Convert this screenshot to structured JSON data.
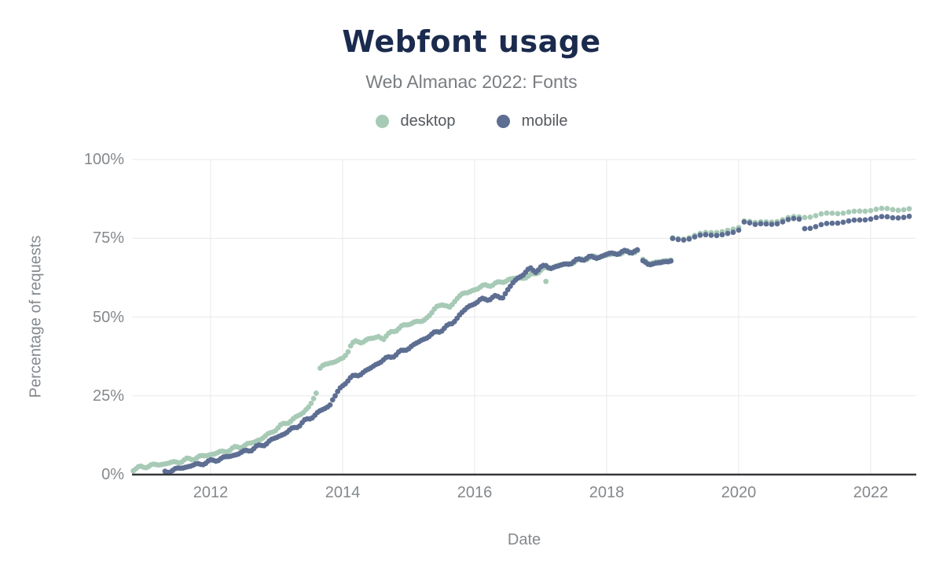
{
  "header": {
    "title": "Webfont usage",
    "subtitle": "Web Almanac 2022: Fonts"
  },
  "legend": {
    "items": [
      {
        "label": "desktop",
        "color": "#a7cab6"
      },
      {
        "label": "mobile",
        "color": "#5d6e92"
      }
    ]
  },
  "axes": {
    "y_label": "Percentage of requests",
    "x_label": "Date",
    "y_ticks": [
      "100%",
      "75%",
      "50%",
      "25%",
      "0%"
    ],
    "x_ticks": [
      "2012",
      "2014",
      "2016",
      "2018",
      "2020",
      "2022"
    ]
  },
  "chart_data": {
    "type": "scatter",
    "title": "Webfont usage",
    "subtitle": "Web Almanac 2022: Fonts",
    "xlabel": "Date",
    "ylabel": "Percentage of requests",
    "xlim": [
      2010.8,
      2022.7
    ],
    "ylim": [
      0,
      100
    ],
    "x_ticks": [
      2012,
      2014,
      2016,
      2018,
      2020,
      2022
    ],
    "y_ticks": [
      0,
      25,
      50,
      75,
      100
    ],
    "grid": true,
    "legend_position": "top",
    "sampling_note": "values in percent of requests; points plotted ~biweekly before 2019 and ~monthly after, interpolated between the anchor readings below",
    "series": [
      {
        "name": "desktop",
        "color": "#a7cab6",
        "segments": [
          [
            [
              2010.83,
              1.6
            ],
            [
              2011,
              2.6
            ],
            [
              2011.25,
              3.3
            ],
            [
              2011.5,
              4
            ],
            [
              2011.75,
              5.2
            ],
            [
              2012,
              6.4
            ],
            [
              2012.2,
              7.3
            ],
            [
              2012.4,
              8.6
            ],
            [
              2012.6,
              9.8
            ],
            [
              2012.75,
              11.2
            ],
            [
              2012.9,
              13
            ],
            [
              2013,
              14.7
            ],
            [
              2013.1,
              15.8
            ],
            [
              2013.2,
              17
            ],
            [
              2013.3,
              18.2
            ],
            [
              2013.4,
              19.6
            ],
            [
              2013.5,
              22
            ],
            [
              2013.58,
              24.5
            ],
            [
              2013.63,
              27
            ]
          ],
          [
            [
              2013.66,
              33.5
            ],
            [
              2013.72,
              34.9
            ],
            [
              2013.8,
              35.4
            ],
            [
              2013.9,
              36
            ],
            [
              2014,
              36.6
            ],
            [
              2014.06,
              38.5
            ],
            [
              2014.12,
              41
            ],
            [
              2014.18,
              41.9
            ],
            [
              2014.3,
              42.3
            ],
            [
              2014.45,
              43.2
            ],
            [
              2014.55,
              43.9
            ],
            [
              2014.62,
              43
            ],
            [
              2014.75,
              45.5
            ],
            [
              2014.9,
              46.8
            ],
            [
              2015,
              48
            ],
            [
              2015.12,
              48.4
            ],
            [
              2015.22,
              48.7
            ],
            [
              2015.4,
              52.5
            ],
            [
              2015.52,
              54.5
            ],
            [
              2015.63,
              52.5
            ],
            [
              2015.72,
              56
            ],
            [
              2015.8,
              57.2
            ],
            [
              2015.9,
              57.7
            ],
            [
              2016,
              58.8
            ],
            [
              2016.1,
              59.6
            ],
            [
              2016.22,
              60.2
            ],
            [
              2016.35,
              60.7
            ],
            [
              2016.5,
              61.8
            ],
            [
              2016.6,
              62.2
            ],
            [
              2016.7,
              62.4
            ],
            [
              2016.8,
              62.8
            ],
            [
              2016.9,
              63.6
            ],
            [
              2017,
              65
            ],
            [
              2017.1,
              65.4
            ],
            [
              2017.2,
              66
            ],
            [
              2017.35,
              66.6
            ],
            [
              2017.5,
              67.4
            ],
            [
              2017.65,
              68.5
            ],
            [
              2017.8,
              69
            ],
            [
              2017.9,
              69.2
            ],
            [
              2018,
              69.6
            ],
            [
              2018.15,
              70.1
            ],
            [
              2018.3,
              70.6
            ],
            [
              2018.42,
              70.8
            ],
            [
              2018.5,
              71
            ]
          ],
          [
            [
              2018.55,
              67.8
            ],
            [
              2018.62,
              67.3
            ],
            [
              2018.72,
              67.2
            ],
            [
              2018.82,
              67.5
            ],
            [
              2018.92,
              68
            ],
            [
              2018.98,
              68.4
            ]
          ],
          [
            [
              2019,
              74.8
            ],
            [
              2019.2,
              75.3
            ],
            [
              2019.35,
              75.9
            ],
            [
              2019.5,
              76.5
            ],
            [
              2019.65,
              77
            ],
            [
              2019.8,
              77.4
            ],
            [
              2019.92,
              77.8
            ],
            [
              2020,
              78.4
            ],
            [
              2020.06,
              80.4
            ],
            [
              2020.12,
              80.9
            ],
            [
              2020.22,
              79.7
            ],
            [
              2020.35,
              80
            ],
            [
              2020.5,
              80.5
            ],
            [
              2020.65,
              80.9
            ],
            [
              2020.8,
              81.3
            ],
            [
              2020.95,
              81.8
            ],
            [
              2021.1,
              82.2
            ],
            [
              2021.25,
              82.5
            ],
            [
              2021.4,
              82.8
            ],
            [
              2021.55,
              83
            ],
            [
              2021.7,
              83.4
            ],
            [
              2021.85,
              83.7
            ],
            [
              2022,
              83.9
            ],
            [
              2022.15,
              84.1
            ],
            [
              2022.3,
              84.3
            ],
            [
              2022.45,
              84.4
            ],
            [
              2022.58,
              84.2
            ],
            [
              2022.66,
              83.5
            ]
          ]
        ],
        "outliers": [
          [
            2017.08,
            61.3
          ]
        ]
      },
      {
        "name": "mobile",
        "color": "#5d6e92",
        "segments": [
          [
            [
              2011.31,
              0.8
            ],
            [
              2011.5,
              1.8
            ],
            [
              2011.7,
              2.8
            ],
            [
              2011.85,
              3.4
            ],
            [
              2012,
              4.2
            ],
            [
              2012.2,
              5.3
            ],
            [
              2012.4,
              6.5
            ],
            [
              2012.6,
              7.9
            ],
            [
              2012.8,
              9.5
            ],
            [
              2013,
              11.8
            ],
            [
              2013.15,
              13.4
            ],
            [
              2013.3,
              15.2
            ],
            [
              2013.4,
              16.6
            ],
            [
              2013.5,
              17.8
            ],
            [
              2013.6,
              19.3
            ],
            [
              2013.7,
              20.6
            ],
            [
              2013.8,
              21.8
            ],
            [
              2013.85,
              24
            ],
            [
              2013.93,
              26.2
            ],
            [
              2014,
              28.2
            ],
            [
              2014.06,
              29.8
            ],
            [
              2014.12,
              30.6
            ],
            [
              2014.25,
              31.8
            ],
            [
              2014.4,
              33.4
            ],
            [
              2014.5,
              34.9
            ],
            [
              2014.6,
              36.2
            ],
            [
              2014.73,
              37.4
            ],
            [
              2014.85,
              38.6
            ],
            [
              2015,
              40.2
            ],
            [
              2015.15,
              42
            ],
            [
              2015.3,
              43.9
            ],
            [
              2015.45,
              45.4
            ],
            [
              2015.55,
              46.6
            ],
            [
              2015.65,
              47.8
            ],
            [
              2015.75,
              50.2
            ],
            [
              2015.88,
              52.8
            ],
            [
              2016,
              54.5
            ],
            [
              2016.1,
              55.4
            ],
            [
              2016.2,
              55.8
            ],
            [
              2016.32,
              56.4
            ],
            [
              2016.42,
              56.2
            ],
            [
              2016.48,
              58
            ],
            [
              2016.58,
              60.8
            ],
            [
              2016.68,
              62.8
            ],
            [
              2016.78,
              64.4
            ],
            [
              2016.85,
              65.2
            ],
            [
              2016.92,
              64.6
            ],
            [
              2017,
              65.7
            ],
            [
              2017.08,
              66.2
            ],
            [
              2017.15,
              65.6
            ],
            [
              2017.25,
              66.1
            ],
            [
              2017.35,
              66.6
            ],
            [
              2017.5,
              67.5
            ],
            [
              2017.62,
              68.4
            ],
            [
              2017.75,
              69
            ],
            [
              2017.85,
              68.8
            ],
            [
              2018,
              69.9
            ],
            [
              2018.15,
              70.3
            ],
            [
              2018.3,
              70.7
            ],
            [
              2018.42,
              70.9
            ],
            [
              2018.5,
              71.1
            ]
          ],
          [
            [
              2018.55,
              67.4
            ],
            [
              2018.62,
              67
            ],
            [
              2018.72,
              66.9
            ],
            [
              2018.82,
              67.2
            ],
            [
              2018.92,
              67.7
            ],
            [
              2018.98,
              68.1
            ]
          ],
          [
            [
              2019,
              74.6
            ],
            [
              2019.2,
              75
            ],
            [
              2019.35,
              75.4
            ],
            [
              2019.5,
              75.8
            ],
            [
              2019.65,
              76.1
            ],
            [
              2019.8,
              76.4
            ],
            [
              2019.92,
              76.8
            ],
            [
              2020,
              77.6
            ],
            [
              2020.06,
              80.1
            ],
            [
              2020.12,
              80.6
            ],
            [
              2020.22,
              79.1
            ],
            [
              2020.35,
              79.4
            ],
            [
              2020.5,
              79.8
            ],
            [
              2020.65,
              80.2
            ],
            [
              2020.8,
              80.7
            ],
            [
              2020.92,
              81
            ],
            [
              2021,
              78.4
            ],
            [
              2021.12,
              78.7
            ],
            [
              2021.25,
              79.1
            ],
            [
              2021.4,
              79.6
            ],
            [
              2021.55,
              80.1
            ],
            [
              2021.7,
              80.6
            ],
            [
              2021.85,
              80.9
            ],
            [
              2022,
              81.2
            ],
            [
              2022.15,
              81.5
            ],
            [
              2022.3,
              81.7
            ],
            [
              2022.45,
              82
            ],
            [
              2022.58,
              81.8
            ],
            [
              2022.66,
              81.2
            ]
          ]
        ],
        "outliers": []
      }
    ]
  },
  "style": {
    "title_color": "#1b2b4e",
    "subtitle_color": "#797d81",
    "tick_color": "#84888c",
    "grid_color": "#e9e9e9",
    "axis_line_color": "#35373b",
    "background": "#ffffff"
  }
}
